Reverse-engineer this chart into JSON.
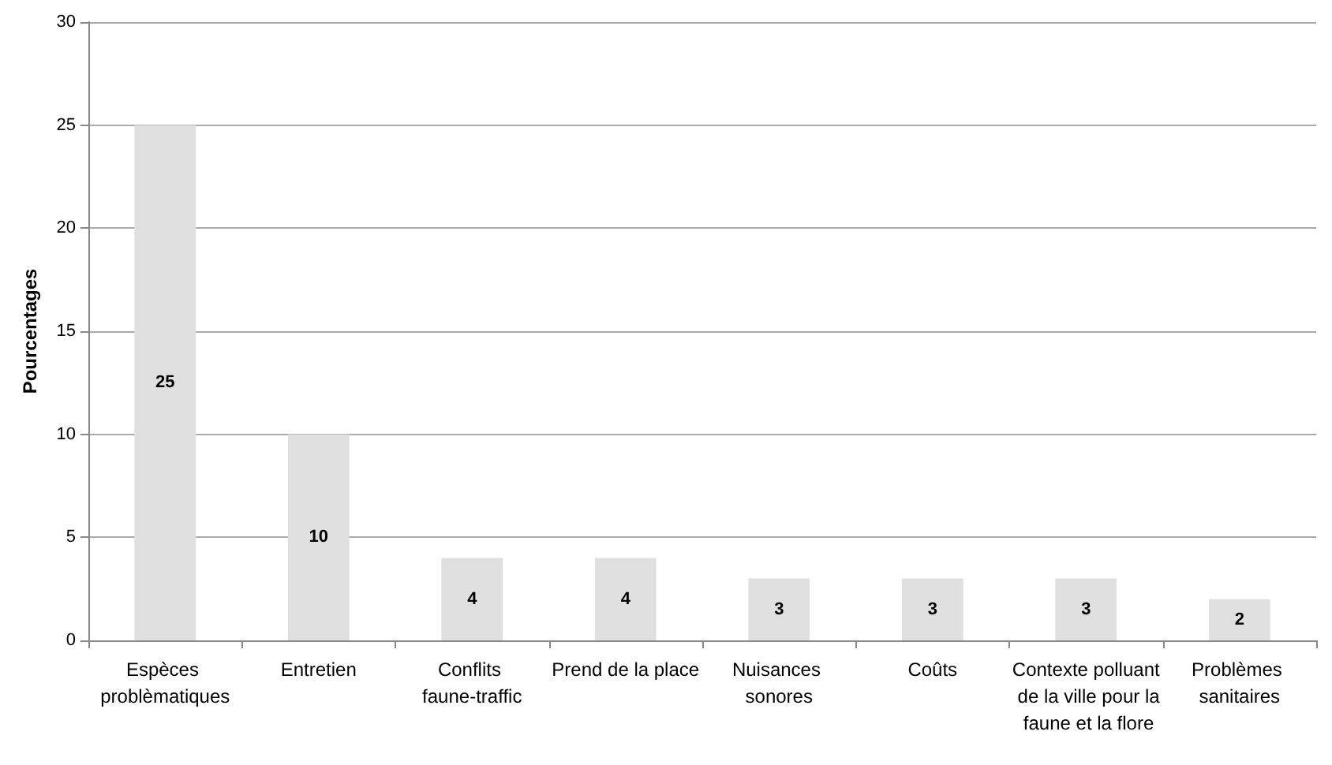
{
  "chart_data": {
    "type": "bar",
    "ylabel": "Pourcentages",
    "categories": [
      "Espèces problèmatiques",
      "Entretien",
      "Conflits faune-traffic",
      "Prend de la place",
      "Nuisances sonores",
      "Coûts",
      "Contexte polluant de la ville pour la faune et la flore",
      "Problèmes sanitaires"
    ],
    "values": [
      25,
      10,
      4,
      4,
      3,
      3,
      3,
      2
    ],
    "color": "#e0e0e0",
    "ylim": [
      0,
      30
    ],
    "yticks": [
      0,
      5,
      10,
      15,
      20,
      25,
      30
    ],
    "grid": "y",
    "data_labels": true
  }
}
